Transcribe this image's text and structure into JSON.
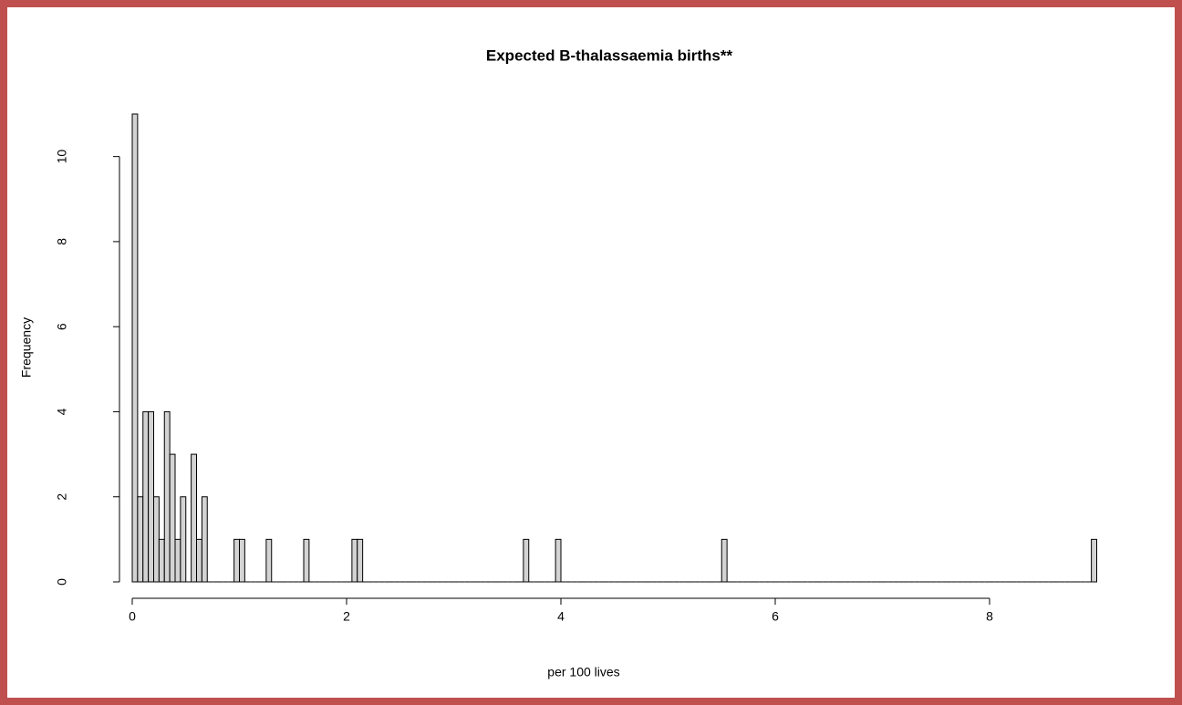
{
  "chart_data": {
    "type": "histogram",
    "title": "Expected B-thalassaemia births**",
    "x_label": "per 100 lives",
    "y_label": "Frequency",
    "color": "#d3d3d3",
    "bins": [
      0,
      0.05,
      0.1,
      0.15,
      0.2,
      0.25,
      0.3,
      0.35,
      0.4,
      0.45,
      0.5,
      0.55,
      0.6,
      0.65,
      0.7,
      0.75,
      0.8,
      0.85,
      0.9,
      0.95,
      1,
      1.05,
      1.1,
      1.15,
      1.2,
      1.25,
      1.3,
      1.35,
      1.4,
      1.45,
      1.5,
      1.55,
      1.6,
      1.65,
      1.7,
      1.75,
      1.8,
      1.85,
      1.9,
      1.95,
      2,
      2.05,
      2.1,
      2.15,
      2.2,
      2.25,
      2.3,
      2.35,
      2.4,
      2.45,
      2.5,
      2.55,
      2.6,
      2.65,
      2.7,
      2.75,
      2.8,
      2.85,
      2.9,
      2.95,
      3,
      3.05,
      3.1,
      3.15,
      3.2,
      3.25,
      3.3,
      3.35,
      3.4,
      3.45,
      3.5,
      3.55,
      3.6,
      3.65,
      3.7,
      3.75,
      3.8,
      3.85,
      3.9,
      3.95,
      4,
      4.05,
      4.1,
      4.15,
      4.2,
      4.25,
      4.3,
      4.35,
      4.4,
      4.45,
      4.5,
      4.55,
      4.6,
      4.65,
      4.7,
      4.75,
      4.8,
      4.85,
      4.9,
      4.95,
      5,
      5.05,
      5.1,
      5.15,
      5.2,
      5.25,
      5.3,
      5.35,
      5.4,
      5.45,
      5.5,
      5.55,
      5.6,
      5.65,
      5.7,
      5.75,
      5.8,
      5.85,
      5.9,
      5.95,
      6,
      6.05,
      6.1,
      6.15,
      6.2,
      6.25,
      6.3,
      6.35,
      6.4,
      6.45,
      6.5,
      6.55,
      6.6,
      6.65,
      6.7,
      6.75,
      6.8,
      6.85,
      6.9,
      6.95,
      7,
      7.05,
      7.1,
      7.15,
      7.2,
      7.25,
      7.3,
      7.35,
      7.4,
      7.45,
      7.5,
      7.55,
      7.6,
      7.65,
      7.7,
      7.75,
      7.8,
      7.85,
      7.9,
      7.95,
      8,
      8.05,
      8.1,
      8.15,
      8.2,
      8.25,
      8.3,
      8.35,
      8.4,
      8.45,
      8.5,
      8.55,
      8.6,
      8.65,
      8.7,
      8.75,
      8.8,
      8.85,
      8.9,
      8.95,
      9
    ],
    "values": [
      11,
      2,
      4,
      4,
      2,
      1,
      4,
      3,
      1,
      2,
      0,
      3,
      1,
      2,
      0,
      0,
      0,
      0,
      0,
      1,
      1,
      0,
      0,
      0,
      0,
      1,
      0,
      0,
      0,
      0,
      0,
      0,
      1,
      0,
      0,
      0,
      0,
      0,
      0,
      0,
      0,
      1,
      1,
      0,
      0,
      0,
      0,
      0,
      0,
      0,
      0,
      0,
      0,
      0,
      0,
      0,
      0,
      0,
      0,
      0,
      0,
      0,
      0,
      0,
      0,
      0,
      0,
      0,
      0,
      0,
      0,
      0,
      0,
      1,
      0,
      0,
      0,
      0,
      0,
      1,
      0,
      0,
      0,
      0,
      0,
      0,
      0,
      0,
      0,
      0,
      0,
      0,
      0,
      0,
      0,
      0,
      0,
      0,
      0,
      0,
      0,
      0,
      0,
      0,
      0,
      0,
      0,
      0,
      0,
      0,
      1,
      0,
      0,
      0,
      0,
      0,
      0,
      0,
      0,
      0,
      0,
      0,
      0,
      0,
      0,
      0,
      0,
      0,
      0,
      0,
      0,
      0,
      0,
      0,
      0,
      0,
      0,
      0,
      0,
      0,
      0,
      0,
      0,
      0,
      0,
      0,
      0,
      0,
      0,
      0,
      0,
      0,
      0,
      0,
      0,
      0,
      0,
      0,
      0,
      0,
      0,
      0,
      0,
      0,
      0,
      0,
      0,
      0,
      0,
      0,
      0,
      0,
      0,
      0,
      0,
      0,
      0,
      0,
      0,
      1
    ],
    "xlim": [
      0,
      9
    ],
    "ylim": [
      0,
      11
    ],
    "xticks": [
      0,
      2,
      4,
      6,
      8
    ],
    "yticks": [
      0,
      2,
      4,
      6,
      8,
      10
    ]
  }
}
